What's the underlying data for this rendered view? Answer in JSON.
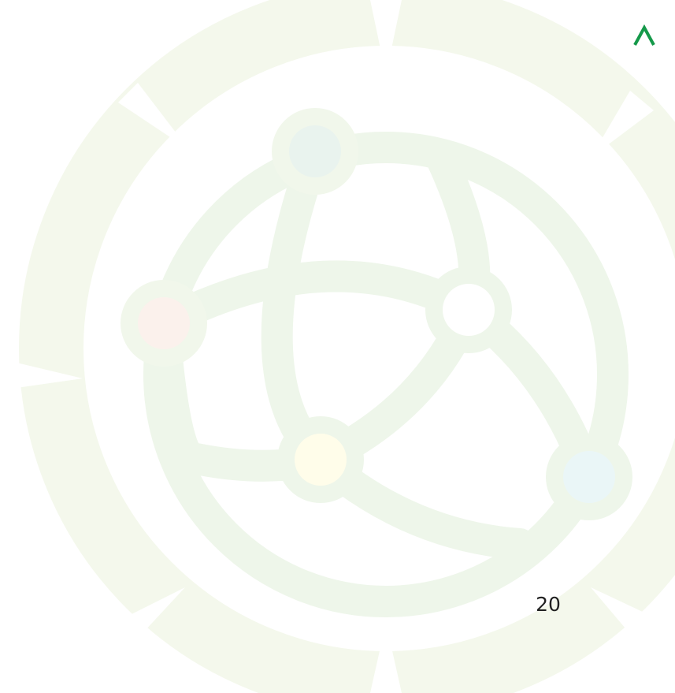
{
  "page_number": "20"
}
